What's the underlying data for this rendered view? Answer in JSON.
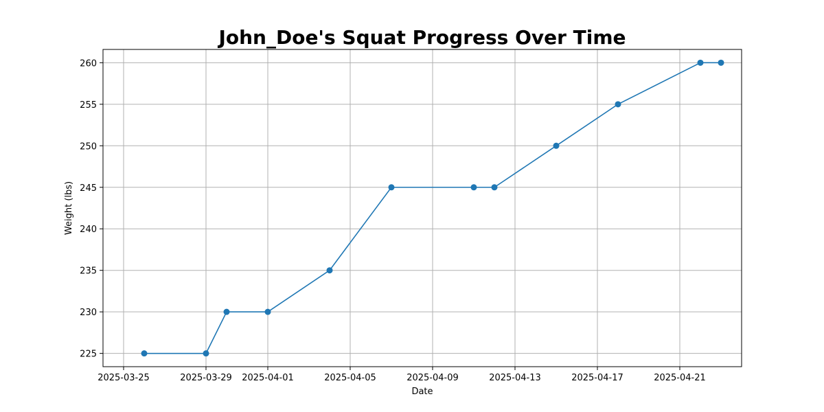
{
  "chart_data": {
    "type": "line",
    "title": "John_Doe's Squat Progress Over Time",
    "xlabel": "Date",
    "ylabel": "Weight (lbs)",
    "x_scale": "date",
    "xlim": [
      "2025-03-24",
      "2025-04-24"
    ],
    "ylim": [
      223.4,
      261.6
    ],
    "grid": true,
    "x_ticks": [
      {
        "value": "2025-03-25",
        "label": "2025-03-25"
      },
      {
        "value": "2025-03-29",
        "label": "2025-03-29"
      },
      {
        "value": "2025-04-01",
        "label": "2025-04-01"
      },
      {
        "value": "2025-04-05",
        "label": "2025-04-05"
      },
      {
        "value": "2025-04-09",
        "label": "2025-04-09"
      },
      {
        "value": "2025-04-13",
        "label": "2025-04-13"
      },
      {
        "value": "2025-04-17",
        "label": "2025-04-17"
      },
      {
        "value": "2025-04-21",
        "label": "2025-04-21"
      }
    ],
    "y_ticks": [
      225,
      230,
      235,
      240,
      245,
      250,
      255,
      260
    ],
    "series": [
      {
        "color": "#1f77b4",
        "marker": "circle",
        "points": [
          {
            "x": "2025-03-26",
            "y": 225
          },
          {
            "x": "2025-03-29",
            "y": 225
          },
          {
            "x": "2025-03-30",
            "y": 230
          },
          {
            "x": "2025-04-01",
            "y": 230
          },
          {
            "x": "2025-04-04",
            "y": 235
          },
          {
            "x": "2025-04-07",
            "y": 245
          },
          {
            "x": "2025-04-11",
            "y": 245
          },
          {
            "x": "2025-04-12",
            "y": 245
          },
          {
            "x": "2025-04-15",
            "y": 250
          },
          {
            "x": "2025-04-18",
            "y": 255
          },
          {
            "x": "2025-04-22",
            "y": 260
          },
          {
            "x": "2025-04-23",
            "y": 260
          }
        ]
      }
    ]
  }
}
